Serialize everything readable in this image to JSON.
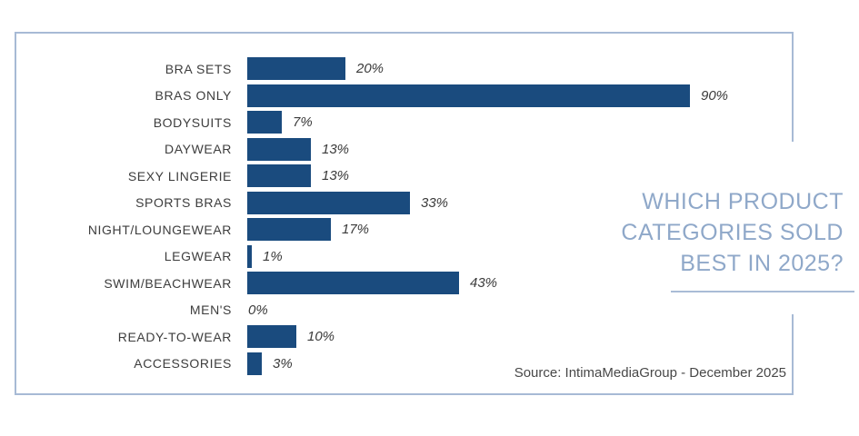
{
  "chart_data": {
    "type": "bar",
    "orientation": "horizontal",
    "title": "WHICH PRODUCT CATEGORIES SOLD BEST IN 2025?",
    "title_lines": [
      "WHICH PRODUCT",
      "CATEGORIES SOLD",
      "BEST IN 2025?"
    ],
    "categories": [
      "BRA SETS",
      "BRAS ONLY",
      "BODYSUITS",
      "DAYWEAR",
      "SEXY LINGERIE",
      "SPORTS BRAS",
      "NIGHT/LOUNGEWEAR",
      "LEGWEAR",
      "SWIM/BEACHWEAR",
      "MEN'S",
      "READY-TO-WEAR",
      "ACCESSORIES"
    ],
    "values": [
      20,
      90,
      7,
      13,
      13,
      33,
      17,
      1,
      43,
      0,
      10,
      3
    ],
    "value_labels": [
      "20%",
      "90%",
      "7%",
      "13%",
      "13%",
      "33%",
      "17%",
      "1%",
      "43%",
      "0%",
      "10%",
      "3%"
    ],
    "unit": "%",
    "xlim": [
      0,
      100
    ],
    "grid": false,
    "legend": false,
    "axis_ticks_visible": false,
    "source": "Source: IntimaMediaGroup - December 2025",
    "colors": {
      "bar": "#1a4b7e",
      "title_text": "#8fa8c9",
      "frame_border": "#a7bad5",
      "underline": "#a9bcd6",
      "category_text": "#3d3d3d",
      "value_text": "#3a3a3a",
      "source_text": "#484848",
      "background": "#ffffff"
    }
  }
}
